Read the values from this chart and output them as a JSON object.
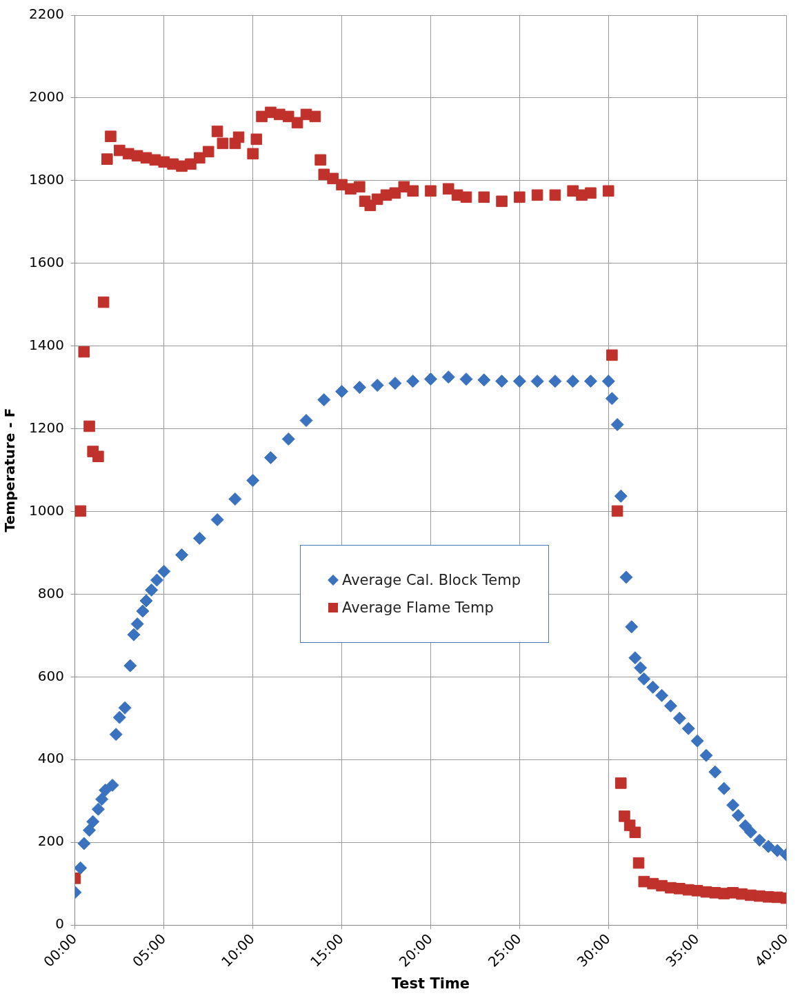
{
  "chart_data": {
    "type": "scatter",
    "xlabel": "Test Time",
    "ylabel": "Temperature - F",
    "xlim": [
      0,
      40
    ],
    "xticks": [
      {
        "value": 0,
        "label": "00:00"
      },
      {
        "value": 5,
        "label": "05:00"
      },
      {
        "value": 10,
        "label": "10:00"
      },
      {
        "value": 15,
        "label": "15:00"
      },
      {
        "value": 20,
        "label": "20:00"
      },
      {
        "value": 25,
        "label": "25:00"
      },
      {
        "value": 30,
        "label": "30:00"
      },
      {
        "value": 35,
        "label": "35:00"
      },
      {
        "value": 40,
        "label": "40:00"
      }
    ],
    "ylim": [
      0,
      2200
    ],
    "yticks": [
      0,
      200,
      400,
      600,
      800,
      1000,
      1200,
      1400,
      1600,
      1800,
      2000,
      2200
    ],
    "grid": true,
    "legend": "center",
    "series": [
      {
        "name": "Average Cal. Block Temp",
        "color": "#3a72c0",
        "marker": "diamond",
        "x": [
          0,
          0.3,
          0.5,
          0.8,
          1,
          1.3,
          1.5,
          1.7,
          2.1,
          2.3,
          2.5,
          2.8,
          3.1,
          3.3,
          3.5,
          3.8,
          4,
          4.3,
          4.6,
          5,
          6,
          7,
          8,
          9,
          10,
          11,
          12,
          13,
          14,
          15,
          16,
          17,
          18,
          19,
          20,
          21,
          22,
          23,
          24,
          25,
          26,
          27,
          28,
          29,
          30,
          30.2,
          30.5,
          30.7,
          31,
          31.3,
          31.5,
          31.8,
          32,
          32.5,
          33,
          33.5,
          34,
          34.5,
          35,
          35.5,
          36,
          36.5,
          37,
          37.3,
          37.7,
          38,
          38.5,
          39,
          39.5,
          40
        ],
        "values": [
          79,
          138,
          197,
          229,
          250,
          280,
          304,
          326,
          338,
          461,
          502,
          525,
          627,
          702,
          728,
          759,
          784,
          810,
          834,
          855,
          895,
          935,
          980,
          1030,
          1075,
          1130,
          1175,
          1220,
          1270,
          1290,
          1300,
          1305,
          1310,
          1315,
          1320,
          1325,
          1320,
          1318,
          1315,
          1315,
          1315,
          1315,
          1315,
          1315,
          1315,
          1273,
          1210,
          1037,
          841,
          721,
          646,
          622,
          595,
          575,
          555,
          530,
          500,
          475,
          445,
          410,
          370,
          330,
          290,
          265,
          240,
          225,
          205,
          190,
          180,
          170
        ]
      },
      {
        "name": "Average Flame Temp",
        "color": "#c0312b",
        "marker": "square",
        "x": [
          0,
          0.3,
          0.5,
          0.8,
          1,
          1.3,
          1.6,
          1.8,
          2,
          2.5,
          3,
          3.5,
          4,
          4.5,
          5,
          5.5,
          6,
          6.5,
          7,
          7.5,
          8,
          8.3,
          9,
          9.2,
          10,
          10.2,
          10.5,
          11,
          11.5,
          12,
          12.5,
          13,
          13.5,
          13.8,
          14,
          14.5,
          15,
          15.5,
          16,
          16.3,
          16.6,
          17,
          17.5,
          18,
          18.5,
          19,
          20,
          21,
          21.5,
          22,
          23,
          24,
          25,
          26,
          27,
          28,
          28.5,
          29,
          30,
          30.2,
          30.5,
          30.7,
          30.9,
          31.2,
          31.5,
          31.7,
          32,
          32.5,
          33,
          33.5,
          34,
          34.5,
          35,
          35.5,
          36,
          36.5,
          37,
          37.5,
          38,
          38.5,
          39,
          39.5,
          40
        ],
        "values": [
          113,
          1001,
          1386,
          1206,
          1145,
          1133,
          1506,
          1852,
          1907,
          1873,
          1865,
          1860,
          1855,
          1850,
          1845,
          1840,
          1835,
          1840,
          1855,
          1870,
          1919,
          1890,
          1890,
          1905,
          1865,
          1900,
          1955,
          1965,
          1960,
          1955,
          1940,
          1960,
          1955,
          1850,
          1815,
          1805,
          1790,
          1780,
          1785,
          1750,
          1740,
          1755,
          1765,
          1770,
          1785,
          1775,
          1775,
          1780,
          1765,
          1760,
          1760,
          1750,
          1760,
          1765,
          1765,
          1775,
          1765,
          1770,
          1775,
          1378,
          1001,
          343,
          263,
          241,
          224,
          150,
          105,
          100,
          95,
          90,
          88,
          85,
          83,
          80,
          78,
          76,
          78,
          75,
          72,
          70,
          68,
          67,
          65
        ]
      }
    ]
  }
}
